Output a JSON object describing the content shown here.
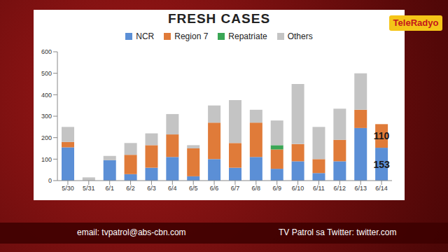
{
  "chart_data": {
    "type": "bar",
    "title": "FRESH CASES",
    "stacked": true,
    "legend": "top",
    "grid": false,
    "data_labels": true,
    "categories": [
      "5/30",
      "5/31",
      "6/1",
      "6/2",
      "6/3",
      "6/4",
      "6/5",
      "6/6",
      "6/7",
      "6/8",
      "6/9",
      "6/10",
      "6/11",
      "6/12",
      "6/13",
      "6/14"
    ],
    "series": [
      {
        "name": "NCR",
        "color": "#5b8fd6",
        "values": [
          155,
          0,
          95,
          30,
          60,
          110,
          20,
          100,
          60,
          110,
          55,
          90,
          35,
          90,
          245,
          153
        ],
        "value_labels": [
          null,
          null,
          null,
          null,
          null,
          null,
          null,
          null,
          null,
          null,
          null,
          null,
          null,
          null,
          null,
          "153"
        ]
      },
      {
        "name": "Region 7",
        "color": "#e07b39",
        "values": [
          25,
          0,
          0,
          90,
          105,
          105,
          130,
          170,
          115,
          160,
          90,
          80,
          65,
          100,
          85,
          110
        ],
        "value_labels": [
          null,
          null,
          null,
          null,
          null,
          null,
          null,
          null,
          null,
          null,
          null,
          null,
          null,
          null,
          null,
          "110"
        ]
      },
      {
        "name": "Repatriate",
        "color": "#3aa655",
        "values": [
          0,
          0,
          0,
          0,
          0,
          0,
          0,
          0,
          0,
          0,
          20,
          0,
          0,
          0,
          0,
          0
        ]
      },
      {
        "name": "Others",
        "color": "#c4c4c4",
        "values": [
          70,
          15,
          20,
          55,
          55,
          95,
          15,
          80,
          200,
          60,
          115,
          280,
          150,
          145,
          170,
          0
        ]
      }
    ],
    "ylim": [
      0,
      600
    ],
    "yticks": [
      0,
      100,
      200,
      300,
      400,
      500,
      600
    ],
    "annotations": [
      "TeleRadyo",
      "email: tvpatrol@abs-cbn.com",
      "TV Patrol sa Twitter: twitter.com"
    ]
  }
}
